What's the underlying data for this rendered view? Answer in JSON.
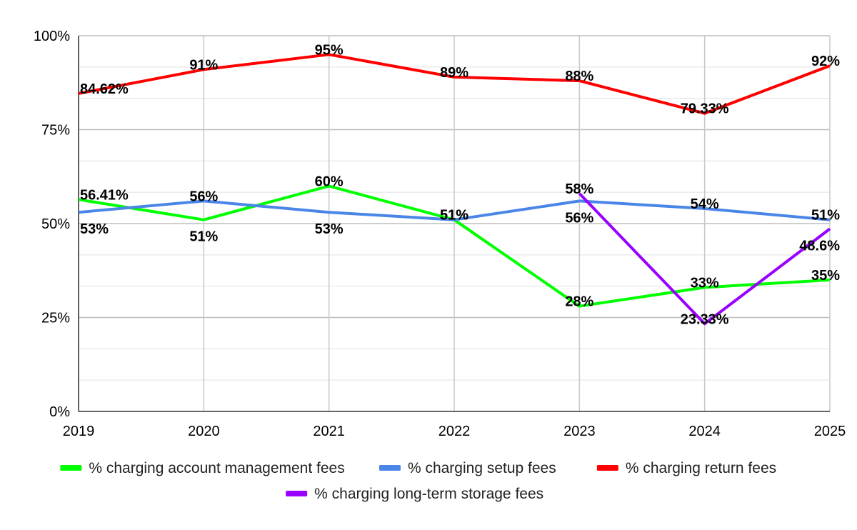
{
  "chart_data": {
    "type": "line",
    "categories": [
      "2019",
      "2020",
      "2021",
      "2022",
      "2023",
      "2024",
      "2025"
    ],
    "y_ticks": [
      "0%",
      "25%",
      "50%",
      "75%",
      "100%"
    ],
    "ylim": [
      0,
      100
    ],
    "grid": true,
    "legend_position": "bottom",
    "series": [
      {
        "name": "% charging account management fees",
        "color": "#00ff00",
        "values": [
          56.41,
          51,
          60,
          51,
          28,
          33,
          35
        ],
        "labels": [
          "56.41%",
          "51%",
          "60%",
          "51%",
          "28%",
          "33%",
          "35%"
        ]
      },
      {
        "name": "% charging setup fees",
        "color": "#4a86e8",
        "values": [
          53,
          56,
          53,
          51,
          56,
          54,
          51
        ],
        "labels": [
          "53%",
          "56%",
          "53%",
          "51%",
          "56%",
          "54%",
          "51%"
        ]
      },
      {
        "name": "% charging return fees",
        "color": "#ff0000",
        "values": [
          84.62,
          91,
          95,
          89,
          88,
          79.33,
          92
        ],
        "labels": [
          "84.62%",
          "91%",
          "95%",
          "89%",
          "88%",
          "79.33%",
          "92%"
        ]
      },
      {
        "name": "% charging long-term storage fees",
        "color": "#9900ff",
        "values": [
          null,
          null,
          null,
          null,
          58,
          23.33,
          48.6
        ],
        "labels": [
          null,
          null,
          null,
          null,
          "58%",
          "23.33%",
          "48.6%"
        ]
      }
    ]
  }
}
